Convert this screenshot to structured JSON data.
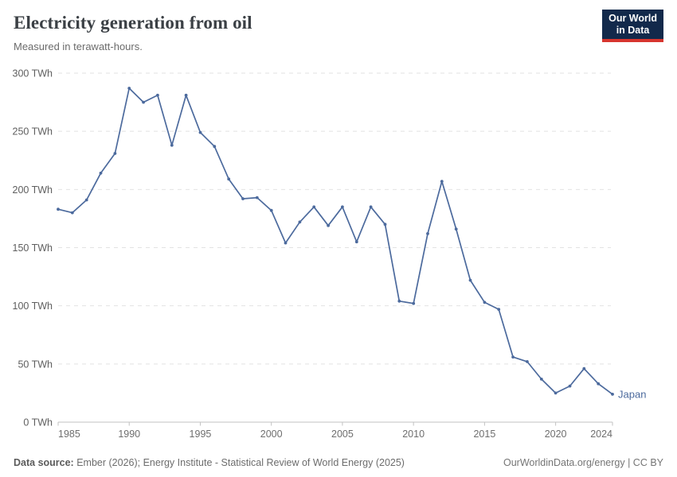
{
  "header": {
    "title": "Electricity generation from oil",
    "subtitle": "Measured in terawatt-hours.",
    "logo_line1": "Our World",
    "logo_line2": "in Data"
  },
  "chart_data": {
    "type": "line",
    "title": "Electricity generation from oil",
    "subtitle": "Measured in terawatt-hours.",
    "xlim": [
      1985,
      2024
    ],
    "ylim": [
      0,
      300
    ],
    "grid": "horizontal-dashed",
    "legend_position": "end-of-line-label",
    "y_ticks": [
      0,
      50,
      100,
      150,
      200,
      250,
      300
    ],
    "y_unit": " TWh",
    "x_ticks": [
      1985,
      1990,
      1995,
      2000,
      2005,
      2010,
      2015,
      2020,
      2024
    ],
    "series": [
      {
        "name": "Japan",
        "color": "#4C6A9D",
        "x": [
          1985,
          1986,
          1987,
          1988,
          1989,
          1990,
          1991,
          1992,
          1993,
          1994,
          1995,
          1996,
          1997,
          1998,
          1999,
          2000,
          2001,
          2002,
          2003,
          2004,
          2005,
          2006,
          2007,
          2008,
          2009,
          2010,
          2011,
          2012,
          2013,
          2014,
          2015,
          2016,
          2017,
          2018,
          2019,
          2020,
          2021,
          2022,
          2023,
          2024
        ],
        "values": [
          183,
          180,
          191,
          214,
          231,
          287,
          275,
          281,
          238,
          281,
          249,
          237,
          209,
          192,
          193,
          182,
          154,
          172,
          185,
          169,
          185,
          155,
          185,
          170,
          104,
          102,
          162,
          207,
          166,
          122,
          103,
          97,
          56,
          52,
          37,
          25,
          31,
          46,
          33,
          24
        ]
      }
    ]
  },
  "colors": {
    "line": "#4C6A9D",
    "entity_label": "#4C6A9D",
    "gridline": "#e2e2e2",
    "axis": "#c2c2c2",
    "y_tick_label": "#5f5f5f",
    "x_tick_label": "#6e6e6e",
    "logo_bg": "#12294b",
    "logo_red": "#d7352e"
  },
  "footer": {
    "source_label": "Data source:",
    "source_text": " Ember (2026); Energy Institute - Statistical Review of World Energy (2025)",
    "link_text": "OurWorldinData.org/energy | CC BY"
  }
}
